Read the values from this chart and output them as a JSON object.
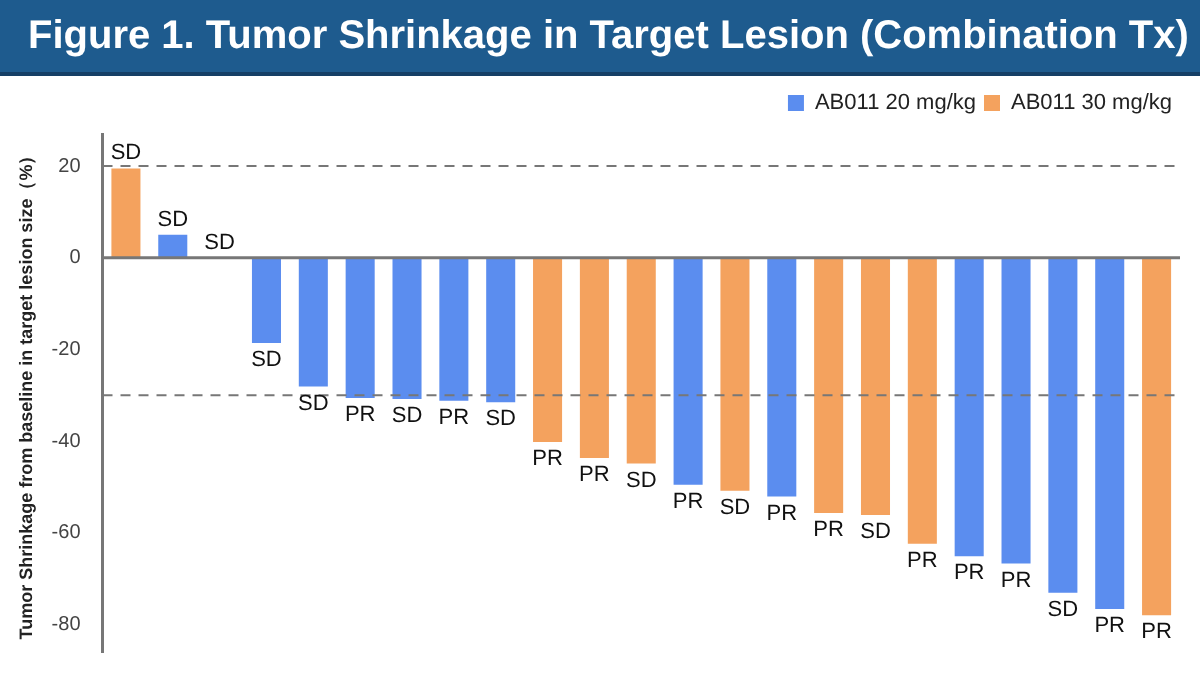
{
  "chart_data": {
    "type": "bar",
    "title": "Figure 1. Tumor Shrinkage in Target Lesion (Combination Tx)",
    "ylabel": "Tumor Shrinkage from baseline in target lesion size（%）",
    "categories": [
      null,
      null,
      null,
      null,
      null,
      null,
      null,
      null,
      null,
      null,
      null,
      null,
      null,
      null,
      null,
      null,
      null,
      null,
      null,
      null,
      null,
      null,
      null
    ],
    "series": [
      {
        "name": "AB011 20 mg/kg",
        "color": "#5b8def",
        "values": [
          null,
          5,
          0,
          -18.6,
          -28.1,
          -30.6,
          -30.8,
          -31.2,
          -31.5,
          null,
          null,
          null,
          -49.5,
          null,
          -52.1,
          null,
          null,
          null,
          -65.1,
          -66.7,
          -73.1,
          -76.6,
          null
        ],
        "value_labels": [
          null,
          "SD",
          "SD",
          "SD",
          "SD",
          "PR",
          "SD",
          "PR",
          "SD",
          null,
          null,
          null,
          "PR",
          null,
          "PR",
          null,
          null,
          null,
          "PR",
          "PR",
          "SD",
          "PR",
          null
        ]
      },
      {
        "name": "AB011 30 mg/kg",
        "color": "#f4a25e",
        "values": [
          19.5,
          null,
          null,
          null,
          null,
          null,
          null,
          null,
          null,
          -40.2,
          -43.7,
          -44.9,
          null,
          -50.8,
          null,
          -55.7,
          -56.1,
          -62.4,
          null,
          null,
          null,
          null,
          -78
        ],
        "value_labels": [
          "SD",
          null,
          null,
          null,
          null,
          null,
          null,
          null,
          null,
          "PR",
          "PR",
          "SD",
          null,
          "SD",
          null,
          "PR",
          "SD",
          "PR",
          null,
          null,
          null,
          null,
          "PR"
        ]
      }
    ],
    "ylim": [
      -86,
      27
    ],
    "yticks": [
      20,
      0,
      -20,
      -40,
      -60,
      -80
    ],
    "ref_lines": [
      {
        "axis": "y",
        "value": 20,
        "color": "#777777",
        "line_style": "dashed"
      },
      {
        "axis": "y",
        "value": -30,
        "color": "#777777",
        "line_style": "dashed"
      }
    ],
    "grid": false,
    "legend": "top right",
    "tick_labels": "y"
  }
}
